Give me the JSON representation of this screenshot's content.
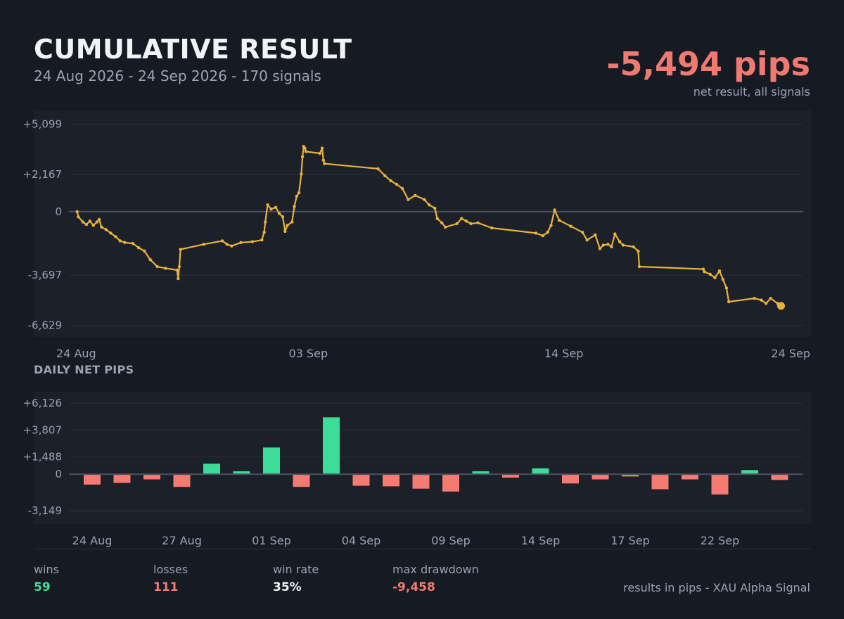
{
  "header": {
    "title": "CUMULATIVE RESULT",
    "subtitle": "24 Aug 2026 - 24 Sep 2026  -  170 signals",
    "net_value": "-5,494 pips",
    "net_caption": "net result, all signals"
  },
  "colors": {
    "background": "#161a22",
    "panel": "#1c2029",
    "line": "#e8b23c",
    "win": "#3ddc97",
    "loss": "#f47a72",
    "zero_line": "#4a5060"
  },
  "chart_data": [
    {
      "type": "line",
      "title": "CUMULATIVE RESULT",
      "y_ticks": [
        5099,
        2167,
        0,
        -3697,
        -6629
      ],
      "y_tick_labels": [
        "+5,099",
        "+2,167",
        "0",
        "-3,697",
        "-6,629"
      ],
      "x_tick_labels": [
        "24 Aug",
        "03 Sep",
        "14 Sep",
        "24 Sep"
      ],
      "x_tick_days": [
        0,
        10,
        21,
        31
      ],
      "ylim": [
        -7300,
        5900
      ],
      "grid": true,
      "series": [
        {
          "values_note_units": "x = days since 24 Aug (data units), y = cumulative pips",
          "points": [
            [
              0.05,
              0
            ],
            [
              0.1,
              -300
            ],
            [
              0.3,
              -600
            ],
            [
              0.45,
              -750
            ],
            [
              0.6,
              -550
            ],
            [
              0.75,
              -800
            ],
            [
              0.9,
              -600
            ],
            [
              1.0,
              -450
            ],
            [
              1.1,
              -900
            ],
            [
              1.3,
              -1050
            ],
            [
              1.5,
              -1250
            ],
            [
              1.7,
              -1450
            ],
            [
              1.9,
              -1700
            ],
            [
              2.1,
              -1800
            ],
            [
              2.45,
              -1850
            ],
            [
              2.7,
              -2100
            ],
            [
              2.95,
              -2300
            ],
            [
              3.2,
              -2800
            ],
            [
              3.5,
              -3200
            ],
            [
              3.85,
              -3300
            ],
            [
              4.35,
              -3400
            ],
            [
              4.4,
              -3900
            ],
            [
              4.45,
              -3200
            ],
            [
              4.5,
              -2200
            ],
            [
              5.5,
              -1900
            ],
            [
              6.3,
              -1700
            ],
            [
              6.5,
              -1900
            ],
            [
              6.7,
              -2000
            ],
            [
              7.1,
              -1800
            ],
            [
              7.6,
              -1750
            ],
            [
              8.0,
              -1650
            ],
            [
              8.1,
              -1200
            ],
            [
              8.15,
              -600
            ],
            [
              8.25,
              400
            ],
            [
              8.4,
              150
            ],
            [
              8.6,
              250
            ],
            [
              8.75,
              -100
            ],
            [
              8.9,
              -300
            ],
            [
              9.0,
              -1150
            ],
            [
              9.1,
              -800
            ],
            [
              9.3,
              -600
            ],
            [
              9.4,
              300
            ],
            [
              9.5,
              900
            ],
            [
              9.6,
              1100
            ],
            [
              9.7,
              2200
            ],
            [
              9.75,
              3200
            ],
            [
              9.8,
              3800
            ],
            [
              9.85,
              3700
            ],
            [
              9.9,
              3500
            ],
            [
              10.5,
              3400
            ],
            [
              10.6,
              3700
            ],
            [
              10.65,
              3000
            ],
            [
              10.7,
              2800
            ],
            [
              13.0,
              2500
            ],
            [
              13.3,
              2100
            ],
            [
              13.55,
              1800
            ],
            [
              13.8,
              1600
            ],
            [
              14.05,
              1350
            ],
            [
              14.3,
              700
            ],
            [
              14.6,
              950
            ],
            [
              15.0,
              700
            ],
            [
              15.2,
              400
            ],
            [
              15.45,
              200
            ],
            [
              15.55,
              -400
            ],
            [
              15.75,
              -650
            ],
            [
              15.9,
              -900
            ],
            [
              16.4,
              -700
            ],
            [
              16.6,
              -400
            ],
            [
              16.8,
              -550
            ],
            [
              17.0,
              -700
            ],
            [
              17.3,
              -650
            ],
            [
              17.9,
              -950
            ],
            [
              19.8,
              -1250
            ],
            [
              20.1,
              -1400
            ],
            [
              20.3,
              -1200
            ],
            [
              20.45,
              -800
            ],
            [
              20.6,
              100
            ],
            [
              20.8,
              -500
            ],
            [
              21.3,
              -850
            ],
            [
              21.8,
              -1200
            ],
            [
              22.0,
              -1650
            ],
            [
              22.35,
              -1350
            ],
            [
              22.55,
              -2150
            ],
            [
              22.7,
              -1950
            ],
            [
              22.9,
              -1900
            ],
            [
              23.05,
              -2050
            ],
            [
              23.2,
              -1300
            ],
            [
              23.4,
              -1750
            ],
            [
              23.55,
              -1950
            ],
            [
              24.0,
              -2050
            ],
            [
              24.2,
              -2300
            ],
            [
              24.25,
              -3200
            ],
            [
              27.0,
              -3350
            ],
            [
              27.05,
              -3500
            ],
            [
              27.3,
              -3650
            ],
            [
              27.5,
              -3850
            ],
            [
              27.7,
              -3450
            ],
            [
              27.85,
              -3950
            ],
            [
              28.0,
              -4450
            ],
            [
              28.1,
              -5250
            ],
            [
              29.2,
              -5050
            ],
            [
              29.5,
              -5150
            ],
            [
              29.7,
              -5350
            ],
            [
              29.9,
              -5050
            ],
            [
              30.2,
              -5350
            ],
            [
              30.35,
              -5494
            ]
          ]
        }
      ]
    },
    {
      "type": "bar",
      "title": "DAILY NET PIPS",
      "y_ticks": [
        6126,
        3807,
        1488,
        0,
        -3149
      ],
      "y_tick_labels": [
        "+6,126",
        "+3,807",
        "+1,488",
        "0",
        "-3,149"
      ],
      "ylim": [
        -4300,
        7100
      ],
      "x_tick_labels": [
        "24 Aug",
        "27 Aug",
        "01 Sep",
        "04 Sep",
        "09 Sep",
        "14 Sep",
        "17 Sep",
        "22 Sep"
      ],
      "x_tick_indices": [
        0,
        3,
        6,
        9,
        12,
        15,
        18,
        21
      ],
      "values": [
        -900,
        -750,
        -450,
        -1100,
        900,
        250,
        2300,
        -1100,
        4900,
        -1000,
        -1050,
        -1250,
        -1500,
        250,
        -300,
        500,
        -800,
        -450,
        -200,
        -1300,
        -450,
        -1750,
        350,
        -500
      ],
      "grid": true
    }
  ],
  "stats": [
    {
      "label": "wins",
      "value": "59",
      "color": "#3ddc97"
    },
    {
      "label": "losses",
      "value": "111",
      "color": "#f47a72"
    },
    {
      "label": "win rate",
      "value": "35%",
      "color": "#f1f3f6"
    },
    {
      "label": "max drawdown",
      "value": "-9,458",
      "color": "#f47a72"
    }
  ],
  "footer": "results in pips  -  XAU Alpha Signal"
}
